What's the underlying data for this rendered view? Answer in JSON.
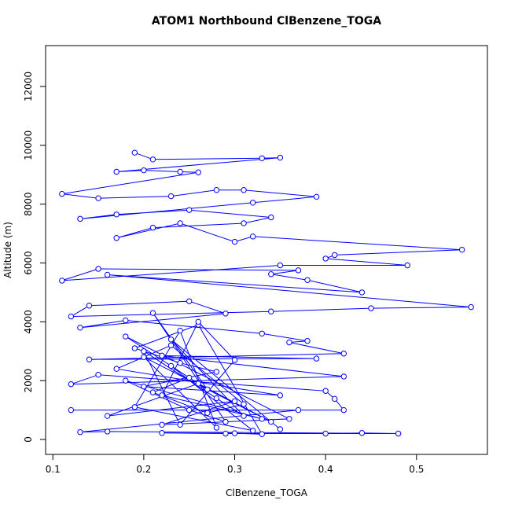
{
  "chart_data": {
    "type": "line",
    "markers": true,
    "title": "ATOM1 Northbound ClBenzene_TOGA",
    "x_label": "ClBenzene_TOGA",
    "y_label": "Altitude (m)",
    "xlim": [
      0.092,
      0.578
    ],
    "ylim": [
      -508,
      13390
    ],
    "xticks": [
      0.1,
      0.2,
      0.3,
      0.4,
      0.5
    ],
    "yticks": [
      0,
      2000,
      4000,
      6000,
      8000,
      10000,
      12000
    ],
    "x": [
      0.19,
      0.21,
      0.33,
      0.35,
      0.17,
      0.2,
      0.24,
      0.26,
      0.11,
      0.15,
      0.23,
      0.28,
      0.31,
      0.39,
      0.32,
      0.13,
      0.17,
      0.25,
      0.34,
      0.31,
      0.21,
      0.17,
      0.24,
      0.3,
      0.32,
      0.55,
      0.41,
      0.4,
      0.49,
      0.35,
      0.11,
      0.15,
      0.37,
      0.34,
      0.38,
      0.44,
      0.16,
      0.56,
      0.45,
      0.34,
      0.12,
      0.14,
      0.25,
      0.29,
      0.13,
      0.18,
      0.33,
      0.38,
      0.36,
      0.42,
      0.14,
      0.39,
      0.22,
      0.42,
      0.12,
      0.15,
      0.4,
      0.41,
      0.42,
      0.12,
      0.37,
      0.13,
      0.16,
      0.48,
      0.44,
      0.4,
      0.29,
      0.22,
      0.3,
      0.33,
      0.26,
      0.19,
      0.24,
      0.28,
      0.2,
      0.35,
      0.17,
      0.23,
      0.31,
      0.27,
      0.21,
      0.25,
      0.18,
      0.36,
      0.22,
      0.3,
      0.16,
      0.26,
      0.34,
      0.2,
      0.28,
      0.24,
      0.19,
      0.32,
      0.23,
      0.27,
      0.21,
      0.29,
      0.25,
      0.18,
      0.33,
      0.22,
      0.26,
      0.3,
      0.24,
      0.2,
      0.28,
      0.31,
      0.23,
      0.35
    ],
    "values": [
      9750,
      9520,
      9560,
      9580,
      9100,
      9150,
      9100,
      9080,
      8350,
      8200,
      8270,
      8480,
      8480,
      8250,
      8050,
      7500,
      7650,
      7800,
      7550,
      7350,
      7200,
      6850,
      7350,
      6720,
      6900,
      6450,
      6270,
      6150,
      5920,
      5920,
      5400,
      5800,
      5750,
      5620,
      5420,
      5000,
      5600,
      4500,
      4460,
      4350,
      4180,
      4550,
      4700,
      4280,
      3800,
      4050,
      3600,
      3350,
      3300,
      2920,
      2720,
      2750,
      2850,
      2140,
      1880,
      2200,
      1650,
      1380,
      1000,
      1000,
      1000,
      250,
      270,
      200,
      220,
      200,
      200,
      220,
      210,
      180,
      3900,
      3100,
      2600,
      2300,
      1800,
      1500,
      2400,
      3200,
      1200,
      900,
      1600,
      2100,
      3500,
      700,
      500,
      1300,
      800,
      1900,
      600,
      2800,
      400,
      3700,
      1100,
      300,
      2500,
      1700,
      4300,
      600,
      1000,
      2000,
      700,
      1500,
      4000,
      2700,
      500,
      3000,
      1400,
      800,
      3400,
      350
    ],
    "color": "#0000ff"
  }
}
